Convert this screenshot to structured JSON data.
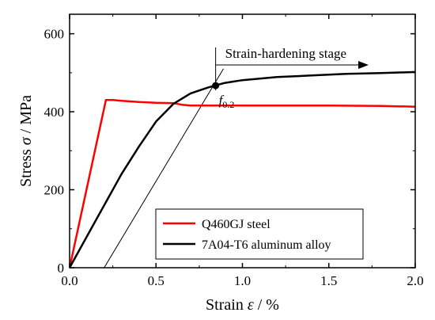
{
  "chart_data": {
    "type": "line",
    "xlabel": {
      "prefix": "Strain ",
      "symbol": "ε",
      "suffix": " / %"
    },
    "ylabel": {
      "prefix": "Stress ",
      "symbol": "σ",
      "suffix": " / MPa"
    },
    "xlim": [
      0,
      2.0
    ],
    "ylim": [
      0,
      650
    ],
    "xticks": [
      {
        "value": 0.0,
        "label": "0.0"
      },
      {
        "value": 0.5,
        "label": "0.5"
      },
      {
        "value": 1.0,
        "label": "1.0"
      },
      {
        "value": 1.5,
        "label": "1.5"
      },
      {
        "value": 2.0,
        "label": "2.0"
      }
    ],
    "yticks": [
      {
        "value": 0,
        "label": "0"
      },
      {
        "value": 200,
        "label": "200"
      },
      {
        "value": 400,
        "label": "400"
      },
      {
        "value": 600,
        "label": "600"
      }
    ],
    "grid": false,
    "legend_position": "bottom-right",
    "series": [
      {
        "name": "Q460GJ steel",
        "color": "#ff0000",
        "points": [
          [
            0,
            0
          ],
          [
            0.21,
            430
          ],
          [
            0.25,
            430
          ],
          [
            0.3,
            428
          ],
          [
            0.4,
            425
          ],
          [
            0.5,
            423
          ],
          [
            0.6,
            422
          ],
          [
            0.65,
            418
          ],
          [
            0.7,
            416
          ],
          [
            1.0,
            416
          ],
          [
            1.5,
            416
          ],
          [
            1.8,
            415
          ],
          [
            2.0,
            413
          ]
        ]
      },
      {
        "name": "7A04-T6 aluminum alloy",
        "color": "#000000",
        "points": [
          [
            0,
            0
          ],
          [
            0.1,
            80
          ],
          [
            0.2,
            160
          ],
          [
            0.3,
            240
          ],
          [
            0.4,
            310
          ],
          [
            0.5,
            375
          ],
          [
            0.6,
            420
          ],
          [
            0.7,
            447
          ],
          [
            0.8,
            462
          ],
          [
            0.84,
            467
          ],
          [
            0.9,
            474
          ],
          [
            1.0,
            481
          ],
          [
            1.1,
            485
          ],
          [
            1.2,
            489
          ],
          [
            1.4,
            493
          ],
          [
            1.6,
            497
          ],
          [
            1.8,
            499
          ],
          [
            2.0,
            502
          ]
        ]
      }
    ],
    "offset_line": {
      "points": [
        [
          0.2,
          0
        ],
        [
          0.89,
          510
        ]
      ]
    },
    "marker": {
      "x": 0.845,
      "y": 467,
      "label_main": "f",
      "label_sub": "0.2"
    },
    "annotation": {
      "text": "Strain-hardening stage",
      "line_x": 0.845,
      "line_y_range": [
        455,
        565
      ],
      "arrow_y": 520,
      "arrow_x_end": 1.73
    }
  }
}
